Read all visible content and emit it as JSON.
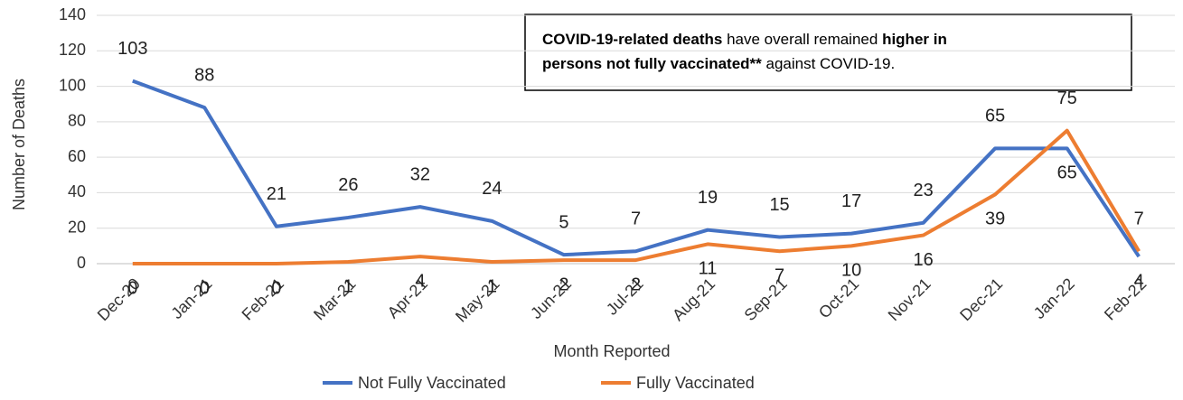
{
  "chart_data": {
    "type": "line",
    "x_label": "Month Reported",
    "y_label": "Number of Deaths",
    "categories": [
      "Dec-20",
      "Jan-21",
      "Feb-21",
      "Mar-21",
      "Apr-21",
      "May-21",
      "Jun-21",
      "Jul-21",
      "Aug-21",
      "Sep-21",
      "Oct-21",
      "Nov-21",
      "Dec-21",
      "Jan-22",
      "Feb-22"
    ],
    "series": [
      {
        "name": "Not Fully Vaccinated",
        "color": "#4472c4",
        "values": [
          103,
          88,
          21,
          26,
          32,
          24,
          5,
          7,
          19,
          15,
          17,
          23,
          65,
          65,
          4
        ]
      },
      {
        "name": "Fully Vaccinated",
        "color": "#ed7d31",
        "values": [
          0,
          0,
          0,
          1,
          4,
          1,
          2,
          2,
          11,
          7,
          10,
          16,
          39,
          75,
          7
        ]
      }
    ],
    "ylim": [
      0,
      140
    ],
    "yticks": [
      0,
      20,
      40,
      60,
      80,
      100,
      120,
      140
    ],
    "grid": true,
    "annotation": [
      [
        {
          "text": "COVID-19-related deaths",
          "bold": true
        },
        {
          "text": " have overall remained ",
          "bold": false
        },
        {
          "text": "higher in",
          "bold": true
        }
      ],
      [
        {
          "text": "persons not fully vaccinated**",
          "bold": true
        },
        {
          "text": " against COVID-19.",
          "bold": false
        }
      ]
    ]
  }
}
